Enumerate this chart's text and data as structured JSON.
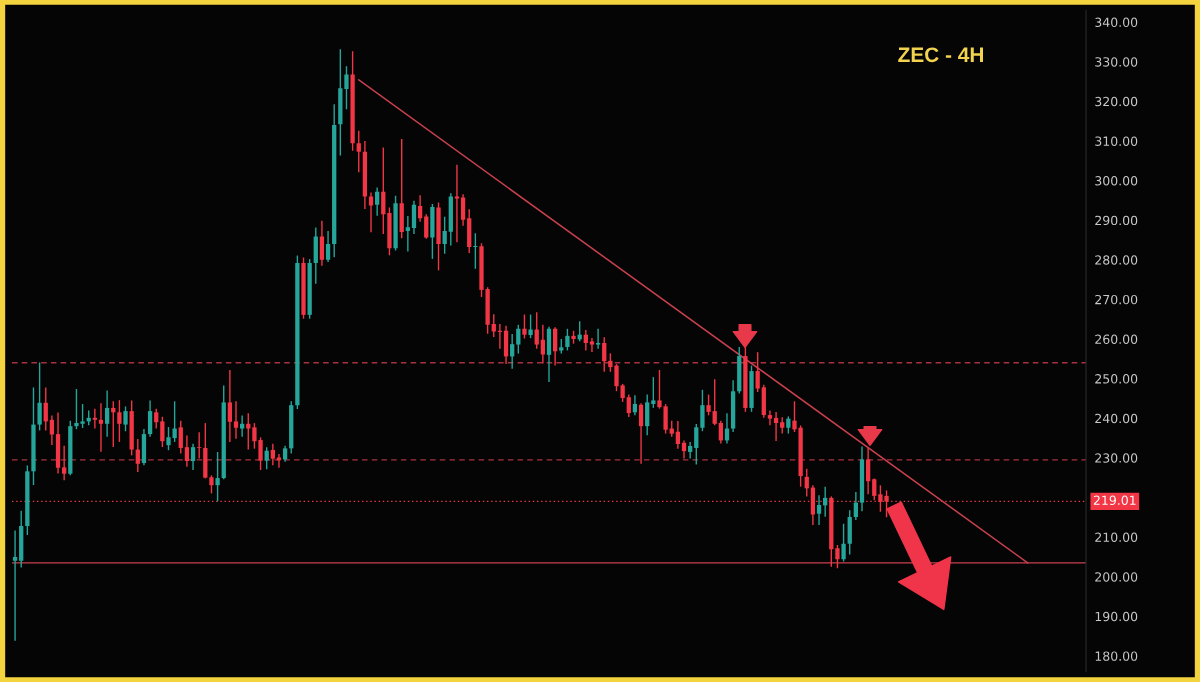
{
  "chart_data": {
    "type": "candlestick",
    "title": "ZEC - 4H",
    "categories": [
      null,
      null,
      null,
      null,
      null,
      null,
      null,
      null,
      null,
      null,
      null,
      null,
      null,
      null,
      null,
      null,
      null,
      null,
      null,
      null,
      null,
      null,
      null,
      null,
      null,
      null,
      null,
      null,
      null,
      null,
      null,
      null,
      null,
      null,
      null,
      null,
      null,
      null,
      null,
      null,
      null,
      null,
      null,
      null,
      null,
      null,
      null,
      null,
      null,
      null,
      null,
      null,
      null,
      null,
      null,
      null,
      null,
      null,
      null,
      null,
      null,
      null,
      null,
      null,
      null,
      null,
      null,
      null,
      null,
      null,
      null,
      null,
      null,
      null,
      null,
      null,
      null,
      null,
      null,
      null,
      null,
      null,
      null,
      null,
      null,
      null,
      null,
      null,
      null,
      null,
      null,
      null,
      null,
      null,
      null,
      null,
      null,
      null,
      null,
      null,
      null,
      null,
      null,
      null,
      null,
      null,
      null,
      null,
      null,
      null,
      null,
      null,
      null,
      null,
      null,
      null,
      null,
      null,
      null,
      null,
      null,
      null,
      null,
      null,
      null,
      null,
      null,
      null,
      null,
      null,
      null,
      null,
      null,
      null,
      null,
      null,
      null,
      null,
      null,
      null,
      null,
      null,
      null,
      null,
      null,
      null,
      null,
      null,
      null,
      null,
      null,
      null,
      null,
      null,
      null,
      null,
      null,
      null,
      null,
      null,
      null,
      null,
      null,
      null,
      null,
      null,
      null,
      null,
      null,
      null,
      null,
      null,
      null,
      null,
      null
    ],
    "ohlc": [
      [
        204,
        211.5,
        184,
        205
      ],
      [
        204,
        216.5,
        202.5,
        212.8
      ],
      [
        212.8,
        227.9,
        210.7,
        226.6
      ],
      [
        226.6,
        247.6,
        223.3,
        238.4
      ],
      [
        238.4,
        253.9,
        237.1,
        243.9
      ],
      [
        243.9,
        247.6,
        237.1,
        239.2
      ],
      [
        239.6,
        240.5,
        233.4,
        235.9
      ],
      [
        236,
        241.3,
        226.2,
        227.5
      ],
      [
        227.6,
        232.9,
        224.5,
        226
      ],
      [
        226,
        239.2,
        225.8,
        238
      ],
      [
        238,
        247.2,
        237.4,
        238.8
      ],
      [
        238.6,
        243.4,
        237.7,
        239.2
      ],
      [
        239.2,
        241.8,
        238.4,
        240.1
      ],
      [
        240.1,
        242.2,
        237.6,
        239.6
      ],
      [
        239.6,
        243.6,
        231.7,
        238.6
      ],
      [
        238.6,
        246.8,
        235.5,
        242.6
      ],
      [
        242.6,
        244.1,
        232.9,
        241.5
      ],
      [
        241.5,
        244.4,
        234.2,
        238.6
      ],
      [
        238.4,
        242.8,
        236.9,
        241.8
      ],
      [
        241.8,
        244.3,
        230.8,
        232.1
      ],
      [
        232.1,
        234.6,
        226.6,
        228.5
      ],
      [
        228.7,
        237.1,
        228.3,
        236
      ],
      [
        236,
        244.3,
        235.5,
        241.8
      ],
      [
        241.5,
        242.2,
        237.6,
        239
      ],
      [
        239.2,
        240.2,
        232.9,
        234.2
      ],
      [
        233.2,
        237.6,
        232.1,
        235.2
      ],
      [
        235,
        244.1,
        234.2,
        237.4
      ],
      [
        237.7,
        239.2,
        231.3,
        232.5
      ],
      [
        232.7,
        235.5,
        227.9,
        229.2
      ],
      [
        229.2,
        233.4,
        227.1,
        232.7
      ],
      [
        232.7,
        236.3,
        230,
        232.5
      ],
      [
        232.5,
        238.6,
        225,
        225
      ],
      [
        225.1,
        225.4,
        221.2,
        223.1
      ],
      [
        223.1,
        231.3,
        219.2,
        224.9
      ],
      [
        224.9,
        248.1,
        224.8,
        244
      ],
      [
        244,
        252,
        234.2,
        239.1
      ],
      [
        239.2,
        244.1,
        235,
        237.6
      ],
      [
        237.4,
        240.5,
        235.5,
        238.6
      ],
      [
        238.6,
        241.1,
        232.3,
        237.4
      ],
      [
        237.7,
        238.6,
        232.5,
        234.2
      ],
      [
        234.5,
        235,
        227.1,
        229.3
      ],
      [
        229.3,
        232.5,
        227.3,
        231.8
      ],
      [
        232,
        233.4,
        228.3,
        229.8
      ],
      [
        230.1,
        230.8,
        227.7,
        229.4
      ],
      [
        229.6,
        232.9,
        229.2,
        232.4
      ],
      [
        232.4,
        244.1,
        231.3,
        243.3
      ],
      [
        243.3,
        280.9,
        242.5,
        279.2
      ],
      [
        279.2,
        280.4,
        265.3,
        266.1
      ],
      [
        266.1,
        280,
        265.3,
        279.2
      ],
      [
        279.2,
        288,
        274.1,
        285.9
      ],
      [
        285.9,
        289.7,
        278.7,
        280
      ],
      [
        280,
        287.1,
        279.6,
        284
      ],
      [
        284,
        319.1,
        280.8,
        314
      ],
      [
        314.2,
        333,
        306.5,
        323.3
      ],
      [
        323.1,
        328.7,
        318.2,
        326.8
      ],
      [
        326.8,
        332.5,
        307.7,
        309.4
      ],
      [
        309.4,
        312.4,
        302.3,
        307.3
      ],
      [
        307.3,
        309.8,
        293,
        296
      ],
      [
        296,
        296.8,
        287.1,
        293.7
      ],
      [
        293.9,
        298.1,
        291.3,
        297.2
      ],
      [
        297.2,
        308.2,
        286.7,
        291.5
      ],
      [
        291.8,
        293,
        281.3,
        282.9
      ],
      [
        282.9,
        296,
        282.5,
        294.3
      ],
      [
        294.3,
        310.3,
        285.6,
        287
      ],
      [
        287.3,
        290.9,
        282.3,
        288.2
      ],
      [
        288,
        294.7,
        286.7,
        293.9
      ],
      [
        293.6,
        296.1,
        289.8,
        290.5
      ],
      [
        290.9,
        291.3,
        285.5,
        285.6
      ],
      [
        285.6,
        293.9,
        280.4,
        293.3
      ],
      [
        293.2,
        294.3,
        277.5,
        284
      ],
      [
        284,
        290.7,
        281.7,
        287.3
      ],
      [
        287.1,
        296.6,
        283.8,
        296
      ],
      [
        296,
        303.8,
        284.6,
        295.5
      ],
      [
        295.7,
        296.4,
        288.8,
        290.1
      ],
      [
        290.5,
        292.6,
        281.9,
        283.2
      ],
      [
        283.2,
        286.5,
        277.9,
        283.5
      ],
      [
        283.4,
        284,
        270.8,
        272.4
      ],
      [
        272.6,
        272.9,
        261.5,
        263.6
      ],
      [
        263.8,
        266.1,
        260.7,
        261.9
      ],
      [
        262.1,
        263.6,
        257.7,
        261.8
      ],
      [
        262.1,
        263.2,
        253.9,
        255.6
      ],
      [
        255.6,
        261.1,
        252.7,
        258.7
      ],
      [
        258.6,
        263.4,
        256.5,
        262.6
      ],
      [
        262.6,
        266,
        260.3,
        261.1
      ],
      [
        261,
        266,
        260.4,
        262.4
      ],
      [
        262.4,
        266.6,
        257.7,
        258.6
      ],
      [
        259.8,
        263.4,
        254,
        256.1
      ],
      [
        256,
        262.9,
        249.3,
        262.6
      ],
      [
        262.6,
        262.8,
        253.5,
        256.9
      ],
      [
        257.1,
        259.8,
        256.5,
        257.9
      ],
      [
        258,
        262.4,
        257.3,
        260.8
      ],
      [
        260.8,
        261.9,
        259,
        260
      ],
      [
        259.9,
        264.3,
        259.6,
        261.1
      ],
      [
        261.1,
        262.1,
        257.3,
        259
      ],
      [
        259.4,
        260.1,
        256.9,
        258.6
      ],
      [
        258.6,
        262.4,
        257.7,
        259
      ],
      [
        259,
        260.3,
        251.9,
        254.4
      ],
      [
        254.5,
        256.2,
        251.9,
        252.9
      ],
      [
        253.3,
        253.5,
        247,
        248.1
      ],
      [
        248.3,
        248.5,
        244.3,
        245.1
      ],
      [
        245.3,
        245.8,
        240.5,
        241.3
      ],
      [
        241.5,
        245.6,
        240.9,
        243.6
      ],
      [
        243.4,
        243.6,
        228.7,
        238
      ],
      [
        238,
        245.8,
        235.9,
        244
      ],
      [
        243.6,
        250.2,
        242.8,
        244.5
      ],
      [
        244.5,
        252,
        242.6,
        242.8
      ],
      [
        243,
        243.4,
        236.3,
        237.1
      ],
      [
        237.4,
        239.2,
        235.5,
        236.1
      ],
      [
        236.6,
        239.1,
        232.5,
        233.5
      ],
      [
        233.8,
        234.2,
        230,
        231.7
      ],
      [
        231.5,
        233.8,
        230,
        233
      ],
      [
        232.5,
        238.4,
        228.5,
        237.7
      ],
      [
        237.6,
        247,
        236.9,
        243.3
      ],
      [
        243.3,
        245.8,
        240.9,
        241.6
      ],
      [
        241.8,
        249.7,
        238.4,
        238.6
      ],
      [
        238.8,
        239.2,
        233.8,
        234.4
      ],
      [
        234.4,
        241.1,
        233.8,
        237.4
      ],
      [
        237.4,
        249.4,
        236.7,
        246.8
      ],
      [
        246.8,
        257.8,
        246.4,
        255.7
      ],
      [
        255.7,
        257.8,
        241.8,
        242.6
      ],
      [
        242.6,
        253.1,
        241.8,
        251.9
      ],
      [
        251.9,
        256.5,
        246.8,
        247.5
      ],
      [
        247.8,
        248.3,
        240.3,
        240.8
      ],
      [
        240.8,
        241.8,
        238.4,
        239.9
      ],
      [
        240.1,
        241.4,
        234.4,
        238.8
      ],
      [
        239,
        240.1,
        236.3,
        237.6
      ],
      [
        237.6,
        240.3,
        236.3,
        239.9
      ],
      [
        239.4,
        244.1,
        236.7,
        237.2
      ],
      [
        237.6,
        238,
        222.9,
        225.4
      ],
      [
        225.2,
        227.1,
        220.4,
        222.3
      ],
      [
        222.5,
        222.9,
        213.2,
        215.7
      ],
      [
        215.9,
        220.4,
        213.2,
        218.1
      ],
      [
        218,
        222.5,
        215.3,
        219.9
      ],
      [
        219.9,
        220.1,
        202.7,
        206.9
      ],
      [
        207.2,
        207.8,
        202.3,
        204.4
      ],
      [
        204.4,
        213.2,
        204,
        208.3
      ],
      [
        208.3,
        216.6,
        205.8,
        215.1
      ],
      [
        215.1,
        221.2,
        214.5,
        218.7
      ],
      [
        218.7,
        232.7,
        216.7,
        229.6
      ],
      [
        229.6,
        232.5,
        221,
        224.1
      ],
      [
        224.6,
        224.6,
        219.5,
        220.4
      ],
      [
        220.8,
        222.9,
        216.6,
        218.9
      ],
      [
        220.4,
        221.6,
        215.2,
        219.01
      ],
      null,
      null,
      null,
      null,
      null,
      null,
      null,
      null,
      null,
      null,
      null,
      null,
      null,
      null,
      null,
      null,
      null,
      null,
      null,
      null,
      null,
      null,
      null,
      null,
      null,
      null,
      null,
      null,
      null,
      null,
      null,
      null
    ],
    "colors": [
      "#26a69a",
      "#26a69a",
      "#26a69a",
      "#26a69a",
      "#26a69a",
      "#f23645",
      "#f23645",
      "#f23645",
      "#f23645",
      "#26a69a",
      "#26a69a",
      "#26a69a",
      "#26a69a",
      "#f23645",
      "#f23645",
      "#26a69a",
      "#f23645",
      "#f23645",
      "#26a69a",
      "#f23645",
      "#f23645",
      "#26a69a",
      "#26a69a",
      "#f23645",
      "#f23645",
      "#26a69a",
      "#26a69a",
      "#f23645",
      "#f23645",
      "#26a69a",
      "#f23645",
      "#f23645",
      "#f23645",
      "#26a69a",
      "#26a69a",
      "#f23645",
      "#f23645",
      "#26a69a",
      "#f23645",
      "#f23645",
      "#f23645",
      "#26a69a",
      "#f23645",
      "#f23645",
      "#26a69a",
      "#26a69a",
      "#26a69a",
      "#f23645",
      "#26a69a",
      "#26a69a",
      "#f23645",
      "#26a69a",
      "#26a69a",
      "#26a69a",
      "#26a69a",
      "#f23645",
      "#f23645",
      "#f23645",
      "#f23645",
      "#26a69a",
      "#f23645",
      "#f23645",
      "#26a69a",
      "#f23645",
      "#26a69a",
      "#26a69a",
      "#f23645",
      "#f23645",
      "#26a69a",
      "#f23645",
      "#26a69a",
      "#26a69a",
      "#f23645",
      "#f23645",
      "#f23645",
      "#26a69a",
      "#f23645",
      "#f23645",
      "#f23645",
      "#f23645",
      "#f23645",
      "#26a69a",
      "#26a69a",
      "#f23645",
      "#26a69a",
      "#f23645",
      "#f23645",
      "#26a69a",
      "#f23645",
      "#26a69a",
      "#26a69a",
      "#f23645",
      "#26a69a",
      "#f23645",
      "#f23645",
      "#26a69a",
      "#f23645",
      "#f23645",
      "#f23645",
      "#f23645",
      "#f23645",
      "#26a69a",
      "#f23645",
      "#26a69a",
      "#26a69a",
      "#f23645",
      "#f23645",
      "#f23645",
      "#f23645",
      "#f23645",
      "#26a69a",
      "#26a69a",
      "#26a69a",
      "#f23645",
      "#f23645",
      "#f23645",
      "#26a69a",
      "#26a69a",
      "#26a69a",
      "#f23645",
      "#26a69a",
      "#f23645",
      "#f23645",
      "#f23645",
      "#f23645",
      "#f23645",
      "#26a69a",
      "#f23645",
      "#f23645",
      "#f23645",
      "#f23645",
      "#26a69a",
      "#26a69a",
      "#f23645",
      "#f23645",
      "#26a69a",
      "#26a69a",
      "#26a69a",
      "#26a69a",
      "#f23645",
      "#f23645",
      "#f23645",
      "#f23645",
      null,
      null,
      null,
      null,
      null,
      null,
      null,
      null,
      null,
      null,
      null,
      null,
      null,
      null,
      null,
      null,
      null,
      null,
      null,
      null,
      null,
      null,
      null,
      null,
      null,
      null,
      null,
      null,
      null,
      null,
      null,
      null
    ],
    "series": [
      {
        "type": "line",
        "color": "#c9404e",
        "values": [
          null,
          null,
          null,
          null,
          null,
          null,
          null,
          null,
          null,
          null,
          null,
          null,
          null,
          null,
          null,
          null,
          null,
          null,
          null,
          null,
          null,
          null,
          null,
          null,
          null,
          null,
          null,
          null,
          null,
          null,
          null,
          null,
          null,
          null,
          null,
          null,
          null,
          null,
          null,
          null,
          null,
          null,
          null,
          null,
          null,
          null,
          null,
          null,
          null,
          null,
          null,
          null,
          null,
          null,
          null,
          null,
          325.4,
          null,
          null,
          null,
          null,
          null,
          null,
          null,
          null,
          null,
          null,
          null,
          null,
          null,
          null,
          null,
          null,
          null,
          null,
          null,
          null,
          null,
          null,
          null,
          null,
          null,
          null,
          null,
          null,
          null,
          null,
          null,
          null,
          null,
          null,
          null,
          null,
          null,
          null,
          null,
          null,
          null,
          null,
          null,
          null,
          null,
          null,
          null,
          null,
          null,
          null,
          null,
          null,
          null,
          null,
          null,
          null,
          null,
          null,
          null,
          null,
          null,
          null,
          null,
          null,
          null,
          null,
          null,
          null,
          null,
          null,
          null,
          null,
          null,
          null,
          null,
          null,
          null,
          null,
          null,
          null,
          null,
          null,
          null,
          null,
          null,
          null,
          null,
          null,
          null,
          null,
          null,
          null,
          null,
          null,
          null,
          null,
          null,
          null,
          null,
          null,
          null,
          null,
          null,
          null,
          null,
          null,
          null,
          null,
          203.5,
          null,
          null,
          null,
          null,
          null,
          null,
          null,
          null,
          null
        ]
      }
    ],
    "ref_lines": [
      {
        "axis": "y",
        "value": 254,
        "color": "#a8323f",
        "line_style": "dashed"
      },
      {
        "axis": "y",
        "value": 229.5,
        "color": "#a8323f",
        "line_style": "dashed"
      },
      {
        "axis": "y",
        "value": 219.01,
        "label": "219.01",
        "color": "#f23645",
        "line_style": "dotted"
      },
      {
        "axis": "y",
        "value": 203.5,
        "color": "#c9404e",
        "line_style": "solid"
      }
    ],
    "ylim": [
      176,
      343
    ],
    "yticks": [
      {
        "value": 180,
        "label": "180.00"
      },
      {
        "value": 190,
        "label": "190.00"
      },
      {
        "value": 200,
        "label": "200.00"
      },
      {
        "value": 210,
        "label": "210.00"
      },
      {
        "value": 230,
        "label": "230.00"
      },
      {
        "value": 240,
        "label": "240.00"
      },
      {
        "value": 250,
        "label": "250.00"
      },
      {
        "value": 260,
        "label": "260.00"
      },
      {
        "value": 270,
        "label": "270.00"
      },
      {
        "value": 280,
        "label": "280.00"
      },
      {
        "value": 290,
        "label": "290.00"
      },
      {
        "value": 300,
        "label": "300.00"
      },
      {
        "value": 310,
        "label": "310.00"
      },
      {
        "value": 320,
        "label": "320.00"
      },
      {
        "value": 330,
        "label": "330.00"
      },
      {
        "value": 340,
        "label": "340.00"
      }
    ],
    "tick_labels": "y"
  }
}
